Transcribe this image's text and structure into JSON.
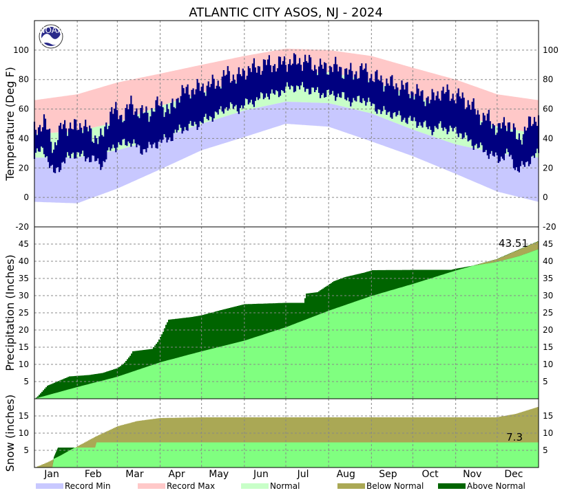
{
  "title": "ATLANTIC CITY  ASOS, NJ - 2024",
  "logo_text": "NOAA",
  "colors": {
    "record_min": "#c8c8ff",
    "record_max": "#ffc8c8",
    "normal_band": "#c8ffc8",
    "observed": "#000080",
    "normal_fill": "#80ff80",
    "below_normal": "#aaa855",
    "above_normal": "#006400",
    "grid": "#888888"
  },
  "legend": [
    {
      "label": "Record Min",
      "color": "#c8c8ff"
    },
    {
      "label": "Record Max",
      "color": "#ffc8c8"
    },
    {
      "label": "Normal",
      "color": "#c8ffc8"
    },
    {
      "label": "Below Normal",
      "color": "#aaa855"
    },
    {
      "label": "Above Normal",
      "color": "#006400"
    }
  ],
  "months": [
    "Jan",
    "Feb",
    "Mar",
    "Apr",
    "May",
    "Jun",
    "Jul",
    "Aug",
    "Sep",
    "Oct",
    "Nov",
    "Dec"
  ],
  "chart_data": [
    {
      "type": "area",
      "name": "temperature",
      "ylabel": "Temperature (Deg F)",
      "ylim": [
        -20,
        120
      ],
      "y_ticks": [
        -20,
        0,
        20,
        40,
        60,
        80,
        100
      ],
      "grid": true,
      "x_labels": [
        "Jan",
        "Feb",
        "Mar",
        "Apr",
        "May",
        "Jun",
        "Jul",
        "Aug",
        "Sep",
        "Oct",
        "Nov",
        "Dec"
      ],
      "x_day_of_year": [
        1,
        32,
        61,
        92,
        122,
        153,
        183,
        214,
        245,
        275,
        306,
        336,
        366
      ],
      "normal_high": [
        [
          1,
          43
        ],
        [
          32,
          45
        ],
        [
          61,
          51
        ],
        [
          92,
          62
        ],
        [
          122,
          71
        ],
        [
          153,
          80
        ],
        [
          183,
          84
        ],
        [
          214,
          85
        ],
        [
          245,
          79
        ],
        [
          275,
          69
        ],
        [
          306,
          58
        ],
        [
          336,
          48
        ],
        [
          366,
          43
        ]
      ],
      "normal_low": [
        [
          1,
          27
        ],
        [
          32,
          27
        ],
        [
          61,
          32
        ],
        [
          92,
          40
        ],
        [
          122,
          50
        ],
        [
          153,
          59
        ],
        [
          183,
          65
        ],
        [
          214,
          64
        ],
        [
          245,
          57
        ],
        [
          275,
          46
        ],
        [
          306,
          36
        ],
        [
          336,
          30
        ],
        [
          366,
          27
        ]
      ],
      "record_max": [
        [
          1,
          66
        ],
        [
          32,
          70
        ],
        [
          61,
          78
        ],
        [
          92,
          84
        ],
        [
          122,
          90
        ],
        [
          153,
          96
        ],
        [
          183,
          101
        ],
        [
          214,
          100
        ],
        [
          245,
          96
        ],
        [
          275,
          88
        ],
        [
          306,
          80
        ],
        [
          336,
          70
        ],
        [
          366,
          66
        ]
      ],
      "record_min": [
        [
          1,
          -3
        ],
        [
          32,
          -4
        ],
        [
          61,
          6
        ],
        [
          92,
          19
        ],
        [
          122,
          32
        ],
        [
          153,
          41
        ],
        [
          183,
          50
        ],
        [
          214,
          48
        ],
        [
          245,
          38
        ],
        [
          275,
          28
        ],
        [
          306,
          16
        ],
        [
          336,
          4
        ],
        [
          366,
          -3
        ]
      ],
      "observed_high": [
        [
          1,
          45
        ],
        [
          8,
          52
        ],
        [
          15,
          34
        ],
        [
          22,
          50
        ],
        [
          29,
          47
        ],
        [
          36,
          50
        ],
        [
          43,
          42
        ],
        [
          50,
          40
        ],
        [
          57,
          60
        ],
        [
          64,
          55
        ],
        [
          71,
          63
        ],
        [
          78,
          57
        ],
        [
          85,
          58
        ],
        [
          92,
          64
        ],
        [
          99,
          58
        ],
        [
          106,
          70
        ],
        [
          113,
          73
        ],
        [
          120,
          74
        ],
        [
          127,
          76
        ],
        [
          134,
          78
        ],
        [
          141,
          84
        ],
        [
          148,
          81
        ],
        [
          155,
          87
        ],
        [
          162,
          88
        ],
        [
          169,
          91
        ],
        [
          176,
          90
        ],
        [
          183,
          92
        ],
        [
          190,
          92
        ],
        [
          197,
          93
        ],
        [
          204,
          89
        ],
        [
          211,
          88
        ],
        [
          218,
          89
        ],
        [
          225,
          86
        ],
        [
          232,
          84
        ],
        [
          239,
          87
        ],
        [
          246,
          82
        ],
        [
          253,
          79
        ],
        [
          260,
          77
        ],
        [
          267,
          75
        ],
        [
          274,
          72
        ],
        [
          281,
          70
        ],
        [
          288,
          66
        ],
        [
          295,
          72
        ],
        [
          302,
          70
        ],
        [
          309,
          68
        ],
        [
          316,
          64
        ],
        [
          323,
          56
        ],
        [
          330,
          53
        ],
        [
          337,
          46
        ],
        [
          344,
          52
        ],
        [
          351,
          39
        ],
        [
          358,
          48
        ],
        [
          366,
          56
        ]
      ],
      "observed_low": [
        [
          1,
          30
        ],
        [
          8,
          32
        ],
        [
          15,
          16
        ],
        [
          22,
          24
        ],
        [
          29,
          30
        ],
        [
          36,
          28
        ],
        [
          43,
          26
        ],
        [
          50,
          22
        ],
        [
          57,
          34
        ],
        [
          64,
          36
        ],
        [
          71,
          38
        ],
        [
          78,
          32
        ],
        [
          85,
          34
        ],
        [
          92,
          38
        ],
        [
          99,
          40
        ],
        [
          106,
          46
        ],
        [
          113,
          48
        ],
        [
          120,
          50
        ],
        [
          127,
          54
        ],
        [
          134,
          57
        ],
        [
          141,
          62
        ],
        [
          148,
          60
        ],
        [
          155,
          64
        ],
        [
          162,
          66
        ],
        [
          169,
          70
        ],
        [
          176,
          70
        ],
        [
          183,
          74
        ],
        [
          190,
          75
        ],
        [
          197,
          74
        ],
        [
          204,
          72
        ],
        [
          211,
          70
        ],
        [
          218,
          70
        ],
        [
          225,
          68
        ],
        [
          232,
          65
        ],
        [
          239,
          67
        ],
        [
          246,
          62
        ],
        [
          253,
          58
        ],
        [
          260,
          57
        ],
        [
          267,
          54
        ],
        [
          274,
          52
        ],
        [
          281,
          50
        ],
        [
          288,
          46
        ],
        [
          295,
          48
        ],
        [
          302,
          46
        ],
        [
          309,
          44
        ],
        [
          316,
          38
        ],
        [
          323,
          34
        ],
        [
          330,
          30
        ],
        [
          337,
          26
        ],
        [
          344,
          30
        ],
        [
          351,
          18
        ],
        [
          358,
          24
        ],
        [
          366,
          30
        ]
      ]
    },
    {
      "type": "area",
      "name": "precipitation",
      "ylabel": "Precipitation (Inches)",
      "ylim": [
        0,
        50
      ],
      "y_ticks": [
        5,
        10,
        15,
        20,
        25,
        30,
        35,
        40,
        45
      ],
      "grid": true,
      "annotation": "43.51",
      "normal_cumulative": [
        [
          1,
          0
        ],
        [
          32,
          3.4
        ],
        [
          61,
          6.4
        ],
        [
          92,
          10.6
        ],
        [
          122,
          13.8
        ],
        [
          153,
          16.9
        ],
        [
          183,
          20.8
        ],
        [
          214,
          25.6
        ],
        [
          245,
          29.9
        ],
        [
          275,
          33.4
        ],
        [
          306,
          37.3
        ],
        [
          336,
          40.6
        ],
        [
          366,
          45.8
        ]
      ],
      "observed_cumulative": [
        [
          1,
          0
        ],
        [
          3,
          0.7
        ],
        [
          10,
          3.8
        ],
        [
          20,
          5.5
        ],
        [
          26,
          6.5
        ],
        [
          40,
          6.9
        ],
        [
          50,
          7.5
        ],
        [
          60,
          8.8
        ],
        [
          63,
          9.5
        ],
        [
          66,
          10.5
        ],
        [
          70,
          12.5
        ],
        [
          72,
          13.8
        ],
        [
          86,
          14.5
        ],
        [
          90,
          16.5
        ],
        [
          94,
          19.5
        ],
        [
          96,
          21.5
        ],
        [
          98,
          23
        ],
        [
          115,
          23.8
        ],
        [
          122,
          24.3
        ],
        [
          136,
          25.8
        ],
        [
          148,
          27
        ],
        [
          153,
          27.5
        ],
        [
          176,
          27.8
        ],
        [
          182,
          27.9
        ],
        [
          196,
          27.9
        ],
        [
          198,
          30.6
        ],
        [
          206,
          31
        ],
        [
          212,
          32.6
        ],
        [
          218,
          34.2
        ],
        [
          226,
          35.4
        ],
        [
          240,
          36.7
        ],
        [
          246,
          37.4
        ],
        [
          277,
          37.5
        ],
        [
          303,
          37.5
        ],
        [
          306,
          37.8
        ],
        [
          320,
          38.8
        ],
        [
          336,
          39.8
        ],
        [
          352,
          41.5
        ],
        [
          366,
          43.51
        ]
      ]
    },
    {
      "type": "area",
      "name": "snow",
      "ylabel": "Snow (inches)",
      "ylim": [
        0,
        20
      ],
      "y_ticks": [
        5,
        10,
        15
      ],
      "grid": true,
      "annotation": "7.3",
      "normal_cumulative": [
        [
          1,
          0
        ],
        [
          10,
          1.5
        ],
        [
          20,
          3.5
        ],
        [
          32,
          6.2
        ],
        [
          45,
          9
        ],
        [
          61,
          12
        ],
        [
          75,
          13.5
        ],
        [
          92,
          14.4
        ],
        [
          122,
          14.6
        ],
        [
          153,
          14.6
        ],
        [
          306,
          14.6
        ],
        [
          336,
          14.6
        ],
        [
          350,
          15.6
        ],
        [
          366,
          17.6
        ]
      ],
      "observed_cumulative": [
        [
          1,
          0
        ],
        [
          14,
          0
        ],
        [
          15,
          3
        ],
        [
          18,
          5.8
        ],
        [
          45,
          5.8
        ],
        [
          46,
          7.3
        ],
        [
          366,
          7.3
        ]
      ]
    }
  ]
}
